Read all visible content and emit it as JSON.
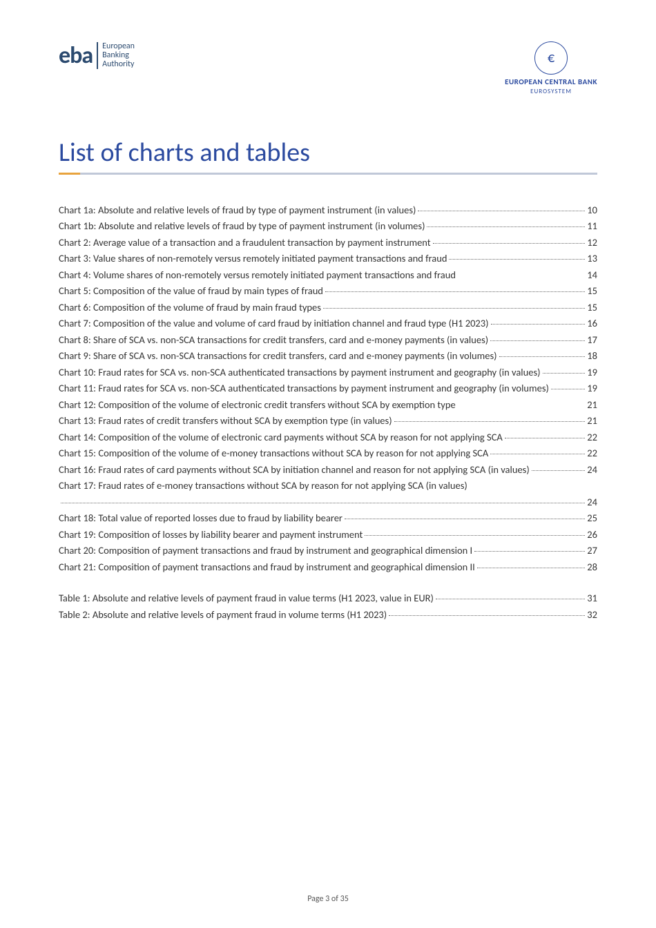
{
  "header": {
    "left_logo": {
      "wordmark": "eba",
      "line1": "European",
      "line2": "Banking",
      "line3": "Authority"
    },
    "right_logo": {
      "symbol": "€",
      "text": "EUROPEAN CENTRAL BANK",
      "subtext": "EUROSYSTEM"
    }
  },
  "title": "List of charts and tables",
  "colors": {
    "title_color": "#2b4a9f",
    "underline_accent": "#e8a33d",
    "underline_rest": "#c0c8d8",
    "body_text": "#333333",
    "logo_color": "#2b4a6f"
  },
  "toc_charts": [
    {
      "text": "Chart 1a: Absolute and relative levels of fraud by type of payment instrument (in values)",
      "page": "10"
    },
    {
      "text": "Chart 1b: Absolute and relative levels of fraud by type of payment instrument (in volumes) ",
      "page": "11"
    },
    {
      "text": "Chart 2: Average value of a transaction and a fraudulent transaction by payment instrument",
      "page": "12"
    },
    {
      "text": "Chart 3: Value shares of non-remotely versus remotely initiated payment transactions and fraud ",
      "page": "13"
    },
    {
      "text": "Chart 4: Volume shares of non-remotely versus remotely initiated payment transactions and fraud",
      "page": "14",
      "nodots": true
    },
    {
      "text": "Chart 5: Composition of the value of fraud by main types of fraud ",
      "page": "15"
    },
    {
      "text": "Chart 6: Composition of the volume of fraud by main fraud types ",
      "page": "15"
    },
    {
      "text": "Chart 7: Composition of the value and volume of card fraud by initiation channel and fraud type (H1 2023)",
      "page": "16",
      "multiline": true
    },
    {
      "text": "Chart 8: Share of SCA vs. non-SCA transactions for credit transfers, card and e-money payments (in values) ",
      "page": "17",
      "multiline": true
    },
    {
      "text": "Chart 9: Share of SCA vs. non-SCA transactions for credit transfers, card and e-money payments (in volumes) ",
      "page": "18",
      "multiline": true
    },
    {
      "text": "Chart 10: Fraud rates for SCA vs. non-SCA authenticated transactions by payment instrument and geography (in values) ",
      "page": "19",
      "multiline": true
    },
    {
      "text": "Chart 11: Fraud rates for SCA vs. non-SCA authenticated transactions by payment instrument and geography (in volumes)",
      "page": "19",
      "multiline": true
    },
    {
      "text": "Chart 12: Composition of the volume of electronic credit transfers without SCA by exemption type ",
      "page": "21",
      "nodots": true
    },
    {
      "text": "Chart 13: Fraud rates of credit transfers without SCA by exemption type (in values) ",
      "page": "21"
    },
    {
      "text": "Chart 14: Composition of the volume of electronic card payments without SCA by reason for not applying SCA",
      "page": "22",
      "multiline": true
    },
    {
      "text": "Chart 15: Composition of the volume of e-money transactions without SCA by reason for not applying SCA",
      "page": "22",
      "multiline": true
    },
    {
      "text": "Chart 16: Fraud rates of card payments without SCA by initiation channel and reason for not applying SCA (in values) ",
      "page": "24",
      "multiline": true
    },
    {
      "text": "Chart 17: Fraud rates of e-money transactions without SCA by reason for not applying SCA (in values) ",
      "page": "24",
      "multiline": true,
      "leading_dots_line": true
    },
    {
      "text": "Chart 18: Total value of reported losses due to fraud by liability bearer ",
      "page": "25"
    },
    {
      "text": "Chart 19: Composition of losses by liability bearer and payment instrument ",
      "page": "26"
    },
    {
      "text": "Chart 20: Composition of payment transactions and fraud by instrument and geographical dimension I ",
      "page": "27",
      "multiline": true
    },
    {
      "text": "Chart 21: Composition of payment transactions and fraud by instrument and geographical dimension II ",
      "page": "28",
      "multiline": true
    }
  ],
  "toc_tables": [
    {
      "text": "Table 1: Absolute and relative levels of payment fraud in value terms (H1 2023, value in EUR)",
      "page": "31"
    },
    {
      "text": "Table 2: Absolute and relative levels of payment fraud in volume terms (H1 2023) ",
      "page": "32"
    }
  ],
  "footer": "Page 3 of 35"
}
